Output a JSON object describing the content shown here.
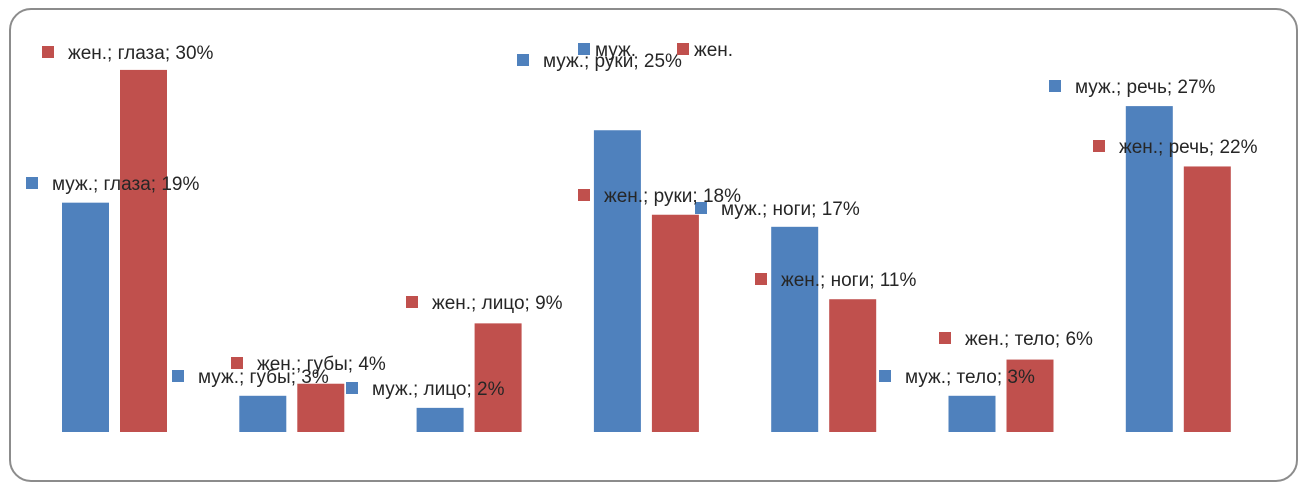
{
  "chart_data": {
    "type": "bar",
    "categories": [
      "глаза",
      "губы",
      "лицо",
      "руки",
      "ноги",
      "тело",
      "речь"
    ],
    "series": [
      {
        "name": "муж.",
        "color": "#4f81bd",
        "values": [
          19,
          3,
          2,
          25,
          17,
          3,
          27
        ],
        "labels": [
          "муж.; глаза; 19%",
          "муж.; губы; 3%",
          "муж.; лицо; 2%",
          "муж.; руки; 25%",
          "муж.; ноги; 17%",
          "муж.; тело; 3%",
          "муж.; речь; 27%"
        ]
      },
      {
        "name": "жен.",
        "color": "#c0504d",
        "values": [
          30,
          4,
          9,
          18,
          11,
          6,
          22
        ],
        "labels": [
          "жен.; глаза; 30%",
          "жен.; губы; 4%",
          "жен.; лицо; 9%",
          "жен.; руки; 18%",
          "жен.; ноги; 11%",
          "жен.; тело; 6%",
          "жен.; речь; 22%"
        ]
      }
    ],
    "legend": {
      "position": "top",
      "entries": [
        "муж.",
        "жен."
      ]
    },
    "ylim": [
      0,
      31
    ],
    "grid": false,
    "axes_visible": false
  }
}
